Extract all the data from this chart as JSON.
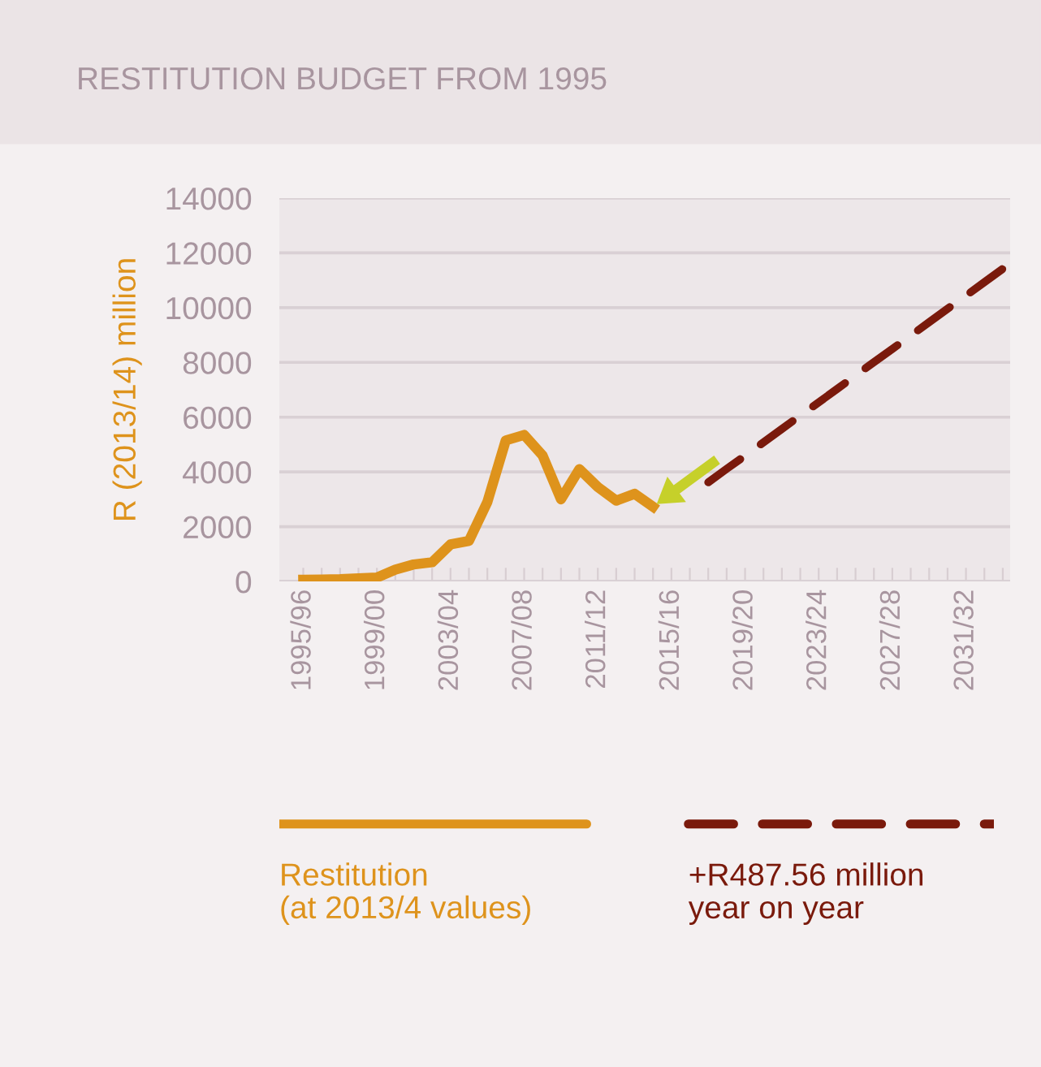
{
  "chart_data": {
    "type": "line",
    "title": "RESTITUTION BUDGET FROM 1995",
    "ylabel": "R (2013/14) million",
    "ylim": [
      0,
      14000
    ],
    "yticks": [
      0,
      2000,
      4000,
      6000,
      8000,
      10000,
      12000,
      14000
    ],
    "categories": [
      "1995/96",
      null,
      null,
      null,
      "1999/00",
      null,
      null,
      null,
      "2003/04",
      null,
      null,
      null,
      "2007/08",
      null,
      null,
      null,
      "2011/12",
      null,
      null,
      null,
      "2015/16",
      null,
      null,
      null,
      "2019/20",
      null,
      null,
      null,
      "2023/24",
      null,
      null,
      null,
      "2027/28",
      null,
      null,
      null,
      "2031/32",
      null,
      null
    ],
    "grid": "y",
    "legend": "bottom",
    "series": [
      {
        "name": "Restitution\n(at 2013/4 values)",
        "color": "#de931c",
        "line_style": "solid",
        "values": [
          60,
          70,
          80,
          110,
          140,
          430,
          620,
          700,
          1350,
          1480,
          2900,
          5150,
          5350,
          4600,
          3000,
          4100,
          3450,
          2950,
          3200,
          2730,
          null,
          null,
          null,
          null,
          null,
          null,
          null,
          null,
          null,
          null,
          null,
          null,
          null,
          null,
          null,
          null,
          null,
          null,
          null
        ]
      },
      {
        "name": "+R487.56 million\nyear on year",
        "color": "#7a1a0c",
        "line_style": "dashed",
        "values": [
          null,
          null,
          null,
          null,
          null,
          null,
          null,
          null,
          null,
          null,
          null,
          null,
          null,
          null,
          null,
          null,
          null,
          null,
          null,
          null,
          null,
          null,
          3620,
          4110,
          4590,
          5080,
          5570,
          6060,
          6540,
          7030,
          7520,
          8010,
          8490,
          8980,
          9470,
          9960,
          10440,
          10930,
          11420
        ]
      }
    ]
  }
}
